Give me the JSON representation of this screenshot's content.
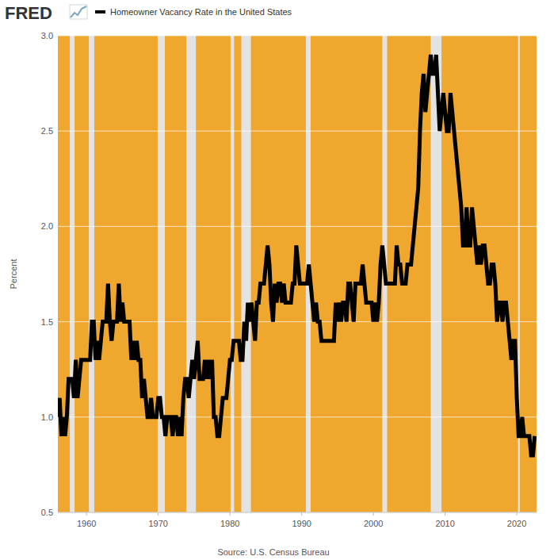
{
  "chart_data": {
    "type": "line",
    "logo": "FRED",
    "source": "Source: U.S. Census Bureau",
    "y_label": "Percent",
    "x": [
      1956,
      1956.25,
      1956.5,
      1956.75,
      1957,
      1957.25,
      1957.5,
      1957.75,
      1958,
      1958.25,
      1958.5,
      1958.75,
      1959,
      1959.25,
      1959.5,
      1959.75,
      1960,
      1960.25,
      1960.5,
      1960.75,
      1961,
      1961.25,
      1961.5,
      1961.75,
      1962,
      1962.25,
      1962.5,
      1962.75,
      1963,
      1963.25,
      1963.5,
      1963.75,
      1964,
      1964.25,
      1964.5,
      1964.75,
      1965,
      1965.25,
      1965.5,
      1965.75,
      1966,
      1966.25,
      1966.5,
      1966.75,
      1967,
      1967.25,
      1967.5,
      1967.75,
      1968,
      1968.25,
      1968.5,
      1968.75,
      1969,
      1969.25,
      1969.5,
      1969.75,
      1970,
      1970.25,
      1970.5,
      1970.75,
      1971,
      1971.25,
      1971.5,
      1971.75,
      1972,
      1972.25,
      1972.5,
      1972.75,
      1973,
      1973.25,
      1973.5,
      1973.75,
      1974,
      1974.25,
      1974.5,
      1974.75,
      1975,
      1975.25,
      1975.5,
      1975.75,
      1976,
      1976.25,
      1976.5,
      1976.75,
      1977,
      1977.25,
      1977.5,
      1977.75,
      1978,
      1978.25,
      1978.5,
      1978.75,
      1979,
      1979.25,
      1979.5,
      1979.75,
      1980,
      1980.25,
      1980.5,
      1980.75,
      1981,
      1981.25,
      1981.5,
      1981.75,
      1982,
      1982.25,
      1982.5,
      1982.75,
      1983,
      1983.25,
      1983.5,
      1983.75,
      1984,
      1984.25,
      1984.5,
      1984.75,
      1985,
      1985.25,
      1985.5,
      1985.75,
      1986,
      1986.25,
      1986.5,
      1986.75,
      1987,
      1987.25,
      1987.5,
      1987.75,
      1988,
      1988.25,
      1988.5,
      1988.75,
      1989,
      1989.25,
      1989.5,
      1989.75,
      1990,
      1990.25,
      1990.5,
      1990.75,
      1991,
      1991.25,
      1991.5,
      1991.75,
      1992,
      1992.25,
      1992.5,
      1992.75,
      1993,
      1993.25,
      1993.5,
      1993.75,
      1994,
      1994.25,
      1994.5,
      1994.75,
      1995,
      1995.25,
      1995.5,
      1995.75,
      1996,
      1996.25,
      1996.5,
      1996.75,
      1997,
      1997.25,
      1997.5,
      1997.75,
      1998,
      1998.25,
      1998.5,
      1998.75,
      1999,
      1999.25,
      1999.5,
      1999.75,
      2000,
      2000.25,
      2000.5,
      2000.75,
      2001,
      2001.25,
      2001.5,
      2001.75,
      2002,
      2002.25,
      2002.5,
      2002.75,
      2003,
      2003.25,
      2003.5,
      2003.75,
      2004,
      2004.25,
      2004.5,
      2004.75,
      2005,
      2005.25,
      2005.5,
      2005.75,
      2006,
      2006.25,
      2006.5,
      2006.75,
      2007,
      2007.25,
      2007.5,
      2007.75,
      2008,
      2008.25,
      2008.5,
      2008.75,
      2009,
      2009.25,
      2009.5,
      2009.75,
      2010,
      2010.25,
      2010.5,
      2010.75,
      2011,
      2011.25,
      2011.5,
      2011.75,
      2012,
      2012.25,
      2012.5,
      2012.75,
      2013,
      2013.25,
      2013.5,
      2013.75,
      2014,
      2014.25,
      2014.5,
      2014.75,
      2015,
      2015.25,
      2015.5,
      2015.75,
      2016,
      2016.25,
      2016.5,
      2016.75,
      2017,
      2017.25,
      2017.5,
      2017.75,
      2018,
      2018.25,
      2018.5,
      2018.75,
      2019,
      2019.25,
      2019.5,
      2019.75,
      2020,
      2020.25,
      2020.5,
      2020.75,
      2021,
      2021.25,
      2021.5,
      2021.75,
      2022,
      2022.25,
      2022.5
    ],
    "series": [
      {
        "name": "Homeowner Vacancy Rate in the United States",
        "color": "#000000",
        "values": [
          1.0,
          1.1,
          0.9,
          1.0,
          0.9,
          1.0,
          1.2,
          1.2,
          1.2,
          1.1,
          1.3,
          1.1,
          1.2,
          1.3,
          1.3,
          1.3,
          1.3,
          1.3,
          1.3,
          1.5,
          1.5,
          1.3,
          1.4,
          1.3,
          1.4,
          1.5,
          1.5,
          1.5,
          1.7,
          1.5,
          1.4,
          1.5,
          1.5,
          1.5,
          1.7,
          1.5,
          1.6,
          1.5,
          1.5,
          1.5,
          1.5,
          1.3,
          1.4,
          1.3,
          1.4,
          1.3,
          1.3,
          1.1,
          1.2,
          1.1,
          1.0,
          1.0,
          1.1,
          1.0,
          1.0,
          1.0,
          1.1,
          1.1,
          1.0,
          1.0,
          0.9,
          1.0,
          1.0,
          1.0,
          0.9,
          1.0,
          1.0,
          0.9,
          1.0,
          0.9,
          1.1,
          1.2,
          1.2,
          1.1,
          1.2,
          1.3,
          1.2,
          1.3,
          1.4,
          1.2,
          1.2,
          1.2,
          1.3,
          1.2,
          1.3,
          1.2,
          1.3,
          1.0,
          1.0,
          0.9,
          0.9,
          1.0,
          1.1,
          1.1,
          1.1,
          1.2,
          1.3,
          1.3,
          1.4,
          1.4,
          1.4,
          1.4,
          1.3,
          1.3,
          1.5,
          1.4,
          1.6,
          1.5,
          1.6,
          1.5,
          1.4,
          1.6,
          1.6,
          1.7,
          1.7,
          1.7,
          1.8,
          1.9,
          1.8,
          1.6,
          1.5,
          1.7,
          1.6,
          1.7,
          1.7,
          1.6,
          1.7,
          1.6,
          1.6,
          1.6,
          1.6,
          1.7,
          1.7,
          1.9,
          1.8,
          1.7,
          1.7,
          1.7,
          1.7,
          1.7,
          1.8,
          1.7,
          1.6,
          1.5,
          1.6,
          1.5,
          1.5,
          1.4,
          1.4,
          1.4,
          1.4,
          1.4,
          1.4,
          1.4,
          1.4,
          1.6,
          1.5,
          1.6,
          1.5,
          1.6,
          1.6,
          1.5,
          1.7,
          1.7,
          1.6,
          1.5,
          1.7,
          1.7,
          1.7,
          1.7,
          1.8,
          1.7,
          1.6,
          1.6,
          1.6,
          1.6,
          1.5,
          1.6,
          1.5,
          1.6,
          1.8,
          1.9,
          1.8,
          1.7,
          1.7,
          1.7,
          1.7,
          1.7,
          1.7,
          1.9,
          1.8,
          1.8,
          1.7,
          1.7,
          1.7,
          1.8,
          1.8,
          1.8,
          1.9,
          2.0,
          2.1,
          2.2,
          2.5,
          2.7,
          2.8,
          2.6,
          2.7,
          2.8,
          2.9,
          2.8,
          2.8,
          2.9,
          2.7,
          2.5,
          2.6,
          2.7,
          2.6,
          2.5,
          2.5,
          2.7,
          2.6,
          2.5,
          2.4,
          2.3,
          2.2,
          2.1,
          1.9,
          1.9,
          2.1,
          1.9,
          1.9,
          2.1,
          2.0,
          1.9,
          1.8,
          1.9,
          1.8,
          1.9,
          1.9,
          1.8,
          1.7,
          1.7,
          1.8,
          1.8,
          1.7,
          1.5,
          1.6,
          1.6,
          1.5,
          1.6,
          1.6,
          1.5,
          1.4,
          1.3,
          1.4,
          1.4,
          1.1,
          0.9,
          0.9,
          1.0,
          0.9,
          0.9,
          0.9,
          0.9,
          0.8,
          0.8,
          0.9
        ]
      }
    ],
    "recessions": [
      [
        1957.67,
        1958.33
      ],
      [
        1960.33,
        1961.08
      ],
      [
        1969.92,
        1970.92
      ],
      [
        1973.92,
        1975.25
      ],
      [
        1980.08,
        1980.58
      ],
      [
        1981.58,
        1982.92
      ],
      [
        1990.58,
        1991.25
      ],
      [
        2001.25,
        2001.92
      ],
      [
        2008.0,
        2009.5
      ],
      [
        2020.17,
        2020.42
      ]
    ],
    "xlim": [
      1956,
      2022.75
    ],
    "xticks": [
      1960,
      1970,
      1980,
      1990,
      2000,
      2010,
      2020
    ],
    "ylim": [
      0.5,
      3.0
    ],
    "yticks": [
      0.5,
      {
        "value": 1,
        "label": "1.0"
      },
      1.5,
      {
        "value": 2,
        "label": "2.0"
      },
      2.5,
      {
        "value": 3,
        "label": "3.0"
      }
    ],
    "grid": true
  }
}
